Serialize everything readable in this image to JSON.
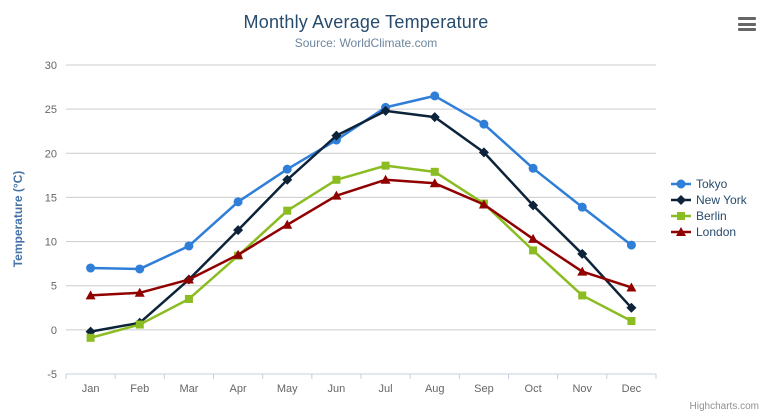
{
  "chart": {
    "title": "Monthly Average Temperature",
    "subtitle": "Source: WorldClimate.com",
    "y_axis_title": "Temperature (°C)",
    "credits": "Highcharts.com"
  },
  "chart_data": {
    "type": "line",
    "title": "Monthly Average Temperature",
    "subtitle": "Source: WorldClimate.com",
    "xlabel": "",
    "ylabel": "Temperature (°C)",
    "ylim": [
      -5,
      30
    ],
    "y_tick_interval": 5,
    "y_ticks": [
      -5,
      0,
      5,
      10,
      15,
      20,
      25,
      30
    ],
    "grid": true,
    "legend_position": "right",
    "categories": [
      "Jan",
      "Feb",
      "Mar",
      "Apr",
      "May",
      "Jun",
      "Jul",
      "Aug",
      "Sep",
      "Oct",
      "Nov",
      "Dec"
    ],
    "series": [
      {
        "name": "Tokyo",
        "color": "#2f7ed8",
        "marker": "circle",
        "values": [
          7.0,
          6.9,
          9.5,
          14.5,
          18.2,
          21.5,
          25.2,
          26.5,
          23.3,
          18.3,
          13.9,
          9.6
        ]
      },
      {
        "name": "New York",
        "color": "#0d233a",
        "marker": "diamond",
        "values": [
          -0.2,
          0.8,
          5.7,
          11.3,
          17.0,
          22.0,
          24.8,
          24.1,
          20.1,
          14.1,
          8.6,
          2.5
        ]
      },
      {
        "name": "Berlin",
        "color": "#8bbc21",
        "marker": "square",
        "values": [
          -0.9,
          0.6,
          3.5,
          8.4,
          13.5,
          17.0,
          18.6,
          17.9,
          14.3,
          9.0,
          3.9,
          1.0
        ]
      },
      {
        "name": "London",
        "color": "#910000",
        "marker": "triangle",
        "values": [
          3.9,
          4.2,
          5.7,
          8.5,
          11.9,
          15.2,
          17.0,
          16.6,
          14.2,
          10.3,
          6.6,
          4.8
        ]
      }
    ],
    "axis_colors": {
      "grid_line": "#cccccc",
      "axis_line": "#c0d0e0",
      "tick_label": "#666666"
    }
  }
}
